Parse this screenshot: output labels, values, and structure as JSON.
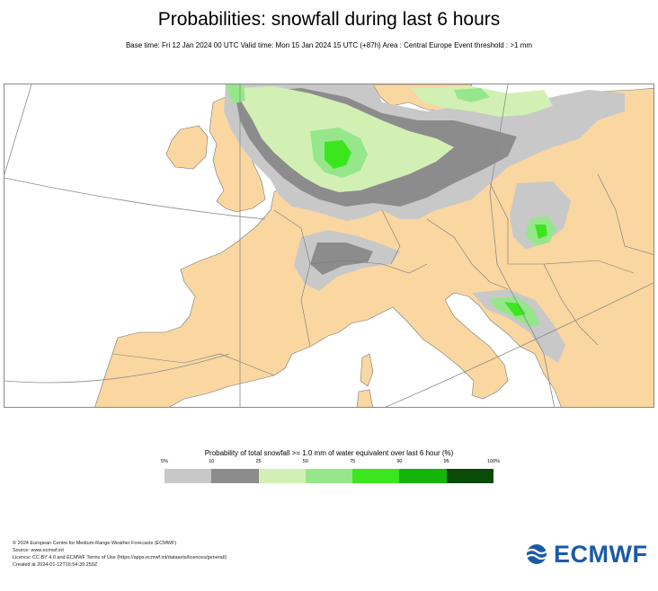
{
  "header": {
    "title": "Probabilities: snowfall during last 6 hours",
    "subtitle": "Base time: Fri 12 Jan 2024 00 UTC Valid time: Mon 15 Jan 2024 15 UTC (+87h) Area : Central Europe Event threshold : >1 mm"
  },
  "legend": {
    "title": "Probability of total snowfall >= 1.0 mm of water equivalent over last 6 hour (%)",
    "ticks": [
      "5%",
      "10",
      "25",
      "50",
      "75",
      "90",
      "95",
      "100%"
    ],
    "colors": [
      "#c8c8c8",
      "#8c8c8c",
      "#d2f0b4",
      "#96e68c",
      "#3ce61e",
      "#14b40a",
      "#0a4b0a"
    ]
  },
  "map_colors": {
    "land": "#fad7a0",
    "sea": "#ffffff",
    "border": "#666666"
  },
  "footer": {
    "line1": "© 2024 European Centre for Medium-Range Weather Forecasts (ECMWF)",
    "line2": "Source: www.ecmwf.int",
    "line3": "Licence: CC BY 4.0 and ECMWF Terms of Use (https://apps.ecmwf.int/datasets/licences/general/)",
    "line4": "Created at 2024-01-12T16:54:39.259Z"
  },
  "logo": {
    "text": "ECMWF",
    "icon": "ecmwf-logo-icon"
  }
}
